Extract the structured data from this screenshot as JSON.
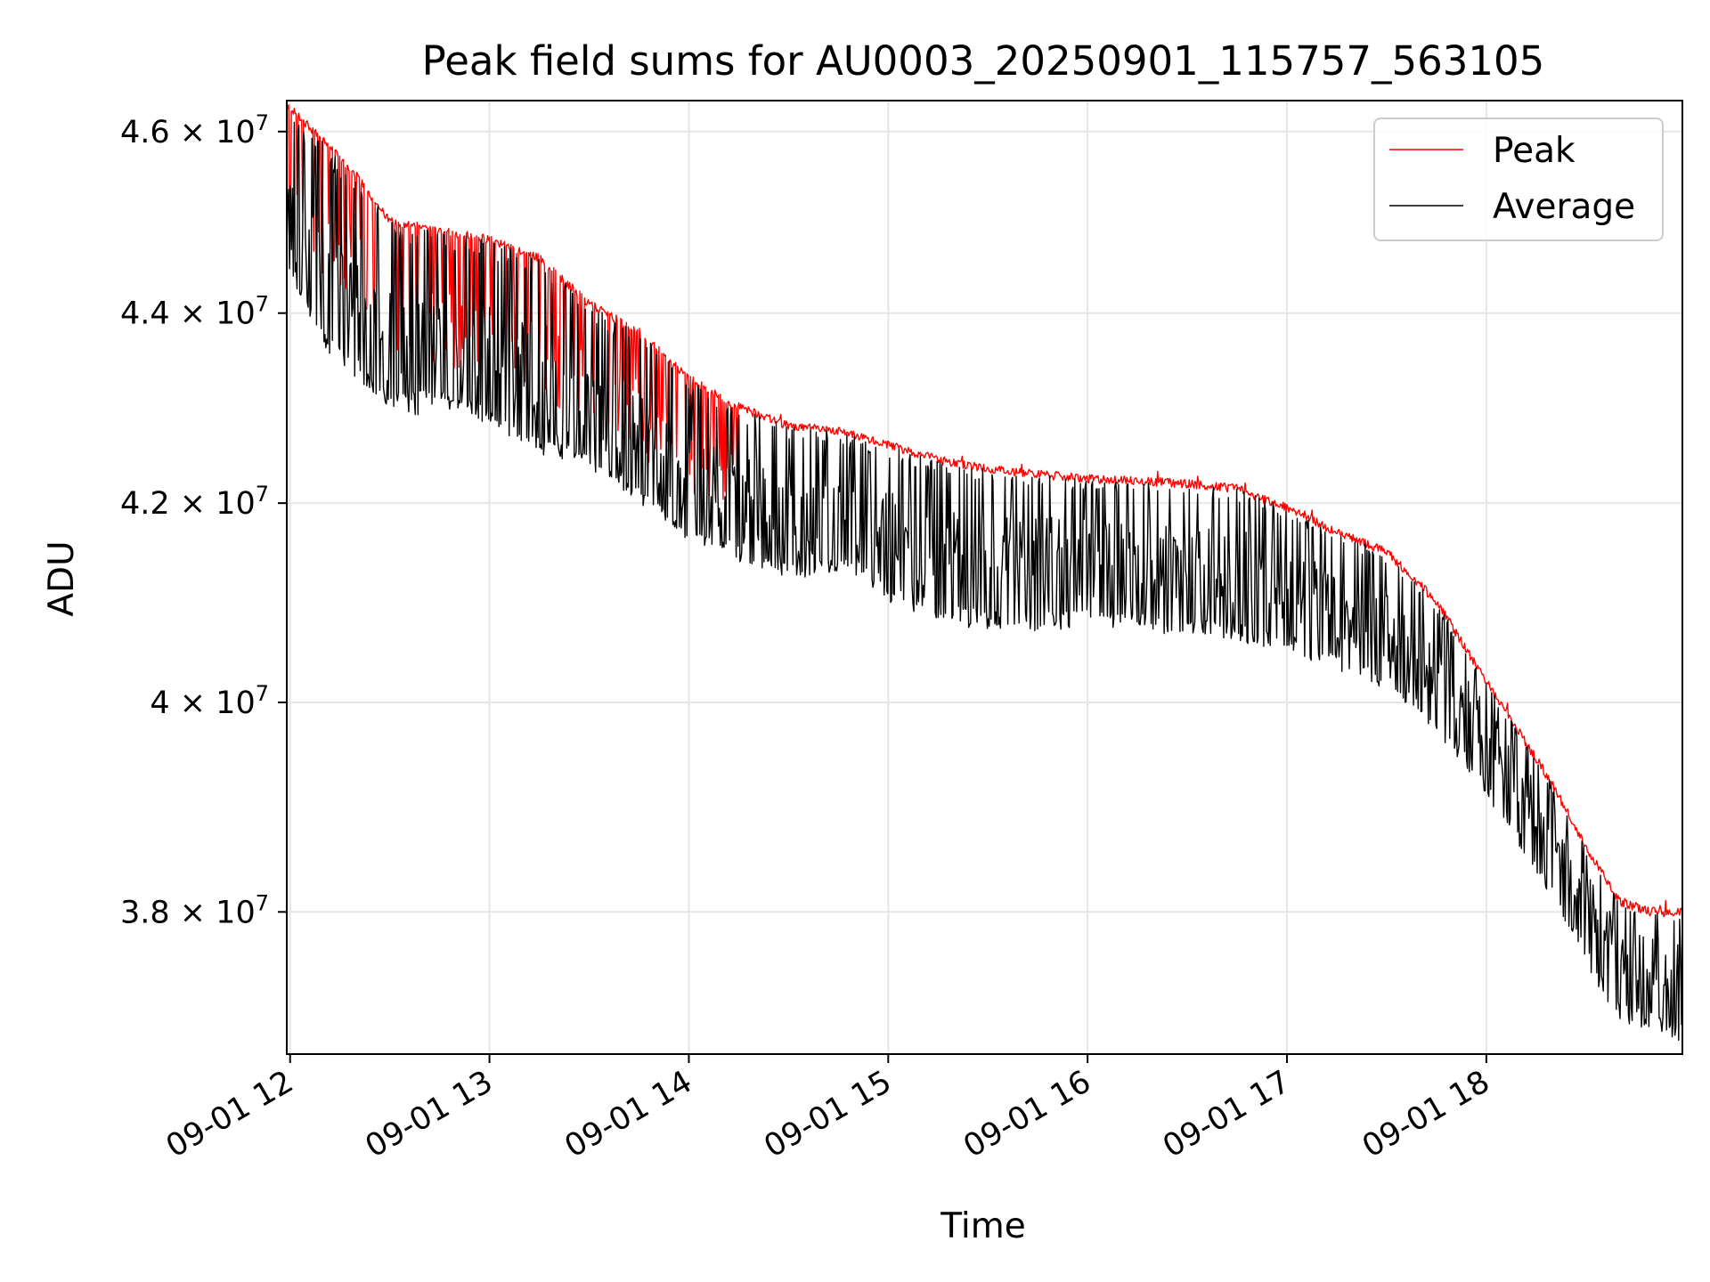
{
  "chart_data": {
    "type": "line",
    "title": "Peak field sums for AU0003_20250901_115757_563105",
    "xlabel": "Time",
    "ylabel": "ADU",
    "x_axis": {
      "kind": "datetime",
      "range": [
        "2025-09-01 11:59",
        "2025-09-01 18:59"
      ],
      "ticks": [
        "2025-09-01 12:00",
        "2025-09-01 13:00",
        "2025-09-01 14:00",
        "2025-09-01 15:00",
        "2025-09-01 16:00",
        "2025-09-01 17:00",
        "2025-09-01 18:00"
      ],
      "tick_labels": [
        "09-01 12",
        "09-01 13",
        "09-01 14",
        "09-01 15",
        "09-01 16",
        "09-01 17",
        "09-01 18"
      ],
      "tick_label_rotation_deg": 30
    },
    "y_axis": {
      "scale": "log",
      "range": [
        36700000,
        46350000
      ],
      "ticks": [
        38000000,
        40000000,
        42000000,
        44000000,
        46000000
      ],
      "tick_labels": [
        {
          "mantissa": "3.8",
          "times": "×",
          "base": "10",
          "exp": "7"
        },
        {
          "mantissa": "4",
          "times": "×",
          "base": "10",
          "exp": "7"
        },
        {
          "mantissa": "4.2",
          "times": "×",
          "base": "10",
          "exp": "7"
        },
        {
          "mantissa": "4.4",
          "times": "×",
          "base": "10",
          "exp": "7"
        },
        {
          "mantissa": "4.6",
          "times": "×",
          "base": "10",
          "exp": "7"
        }
      ]
    },
    "grid": true,
    "legend_position": "top-right",
    "series": [
      {
        "name": "Peak",
        "color": "#ff0000",
        "x": [
          "2025-09-01 11:59",
          "2025-09-01 12:10",
          "2025-09-01 12:20",
          "2025-09-01 12:30",
          "2025-09-01 12:45",
          "2025-09-01 13:00",
          "2025-09-01 13:15",
          "2025-09-01 13:30",
          "2025-09-01 13:45",
          "2025-09-01 14:00",
          "2025-09-01 14:15",
          "2025-09-01 14:30",
          "2025-09-01 14:45",
          "2025-09-01 15:00",
          "2025-09-01 15:15",
          "2025-09-01 15:30",
          "2025-09-01 15:45",
          "2025-09-01 16:00",
          "2025-09-01 16:15",
          "2025-09-01 16:30",
          "2025-09-01 16:45",
          "2025-09-01 17:00",
          "2025-09-01 17:15",
          "2025-09-01 17:30",
          "2025-09-01 17:45",
          "2025-09-01 18:00",
          "2025-09-01 18:10",
          "2025-09-01 18:20",
          "2025-09-01 18:30",
          "2025-09-01 18:40",
          "2025-09-01 18:50",
          "2025-09-01 18:59"
        ],
        "y": [
          46300000,
          45900000,
          45500000,
          45000000,
          44900000,
          44800000,
          44600000,
          44100000,
          43800000,
          43300000,
          43000000,
          42800000,
          42750000,
          42600000,
          42450000,
          42350000,
          42300000,
          42250000,
          42230000,
          42200000,
          42150000,
          41950000,
          41700000,
          41500000,
          41000000,
          40200000,
          39700000,
          39200000,
          38600000,
          38100000,
          38000000,
          38000000
        ]
      },
      {
        "name": "Average",
        "color": "#000000",
        "x": [
          "2025-09-01 11:59",
          "2025-09-01 12:10",
          "2025-09-01 12:20",
          "2025-09-01 12:30",
          "2025-09-01 12:45",
          "2025-09-01 13:00",
          "2025-09-01 13:15",
          "2025-09-01 13:30",
          "2025-09-01 13:45",
          "2025-09-01 14:00",
          "2025-09-01 14:15",
          "2025-09-01 14:30",
          "2025-09-01 14:45",
          "2025-09-01 15:00",
          "2025-09-01 15:15",
          "2025-09-01 15:30",
          "2025-09-01 15:45",
          "2025-09-01 16:00",
          "2025-09-01 16:15",
          "2025-09-01 16:30",
          "2025-09-01 16:45",
          "2025-09-01 17:00",
          "2025-09-01 17:15",
          "2025-09-01 17:30",
          "2025-09-01 17:45",
          "2025-09-01 18:00",
          "2025-09-01 18:10",
          "2025-09-01 18:20",
          "2025-09-01 18:30",
          "2025-09-01 18:40",
          "2025-09-01 18:50",
          "2025-09-01 18:59"
        ],
        "y": [
          44800000,
          44300000,
          43900000,
          43500000,
          43400000,
          43300000,
          43100000,
          42800000,
          42500000,
          42100000,
          41900000,
          41800000,
          41750000,
          41600000,
          41450000,
          41400000,
          41350000,
          41350000,
          41330000,
          41300000,
          41250000,
          41100000,
          40900000,
          40700000,
          40300000,
          39700000,
          39200000,
          38700000,
          38100000,
          37600000,
          37500000,
          37400000
        ],
        "spike_low_y": [
          44500000,
          43600000,
          43300000,
          43000000,
          43100000,
          42800000,
          42500000,
          42400000,
          42000000,
          41600000,
          41400000,
          41200000,
          41300000,
          41000000,
          40800000,
          40700000,
          40700000,
          40750000,
          40700000,
          40650000,
          40600000,
          40500000,
          40300000,
          40100000,
          39700000,
          39100000,
          38600000,
          38100000,
          37500000,
          37000000,
          36900000,
          36800000
        ]
      }
    ]
  }
}
